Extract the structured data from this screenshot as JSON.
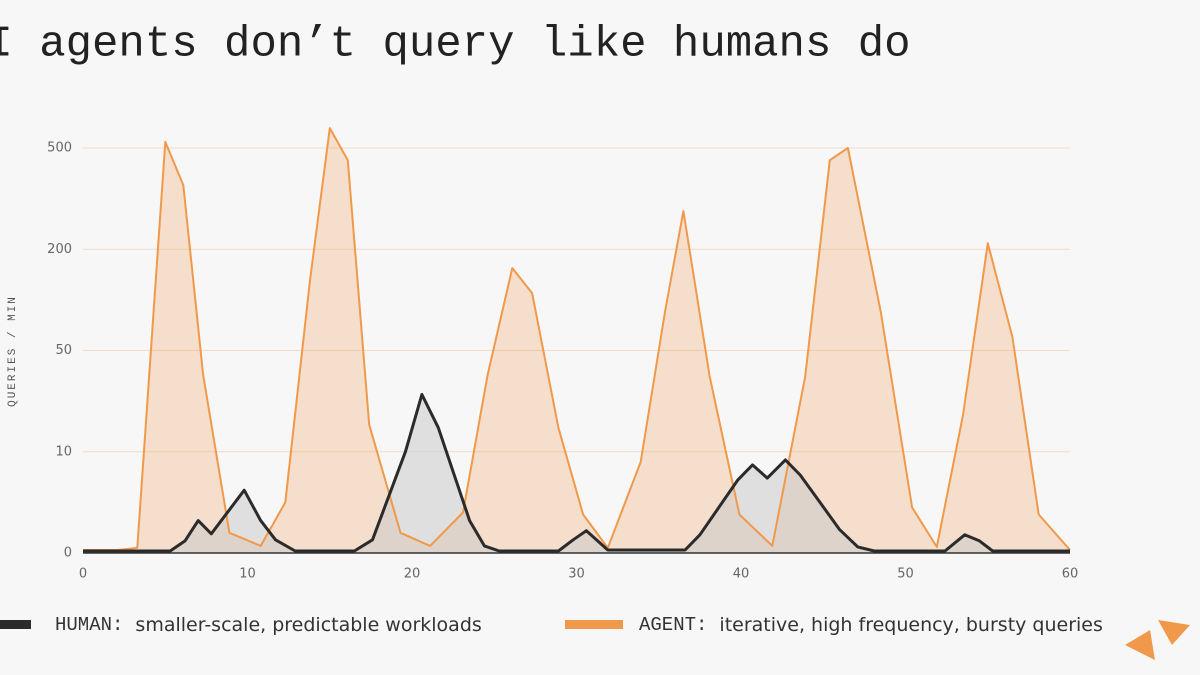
{
  "chart_data": {
    "type": "area",
    "title": "AI agents don’t query like humans do",
    "y_label": "QUERIES / MIN",
    "xlim": [
      0,
      60
    ],
    "xticks": [
      0,
      10,
      20,
      30,
      40,
      50,
      60
    ],
    "yticks": [
      0,
      10,
      50,
      200,
      500
    ],
    "grid": true,
    "series": [
      {
        "name": "HUMAN:",
        "description": "smaller-scale, predictable workloads",
        "color": "#2b2b2b",
        "x": [
          0,
          5.3,
          6.2,
          7,
          7.8,
          9.8,
          10.8,
          11.7,
          12.9,
          16.5,
          17.6,
          19.6,
          20.6,
          21.6,
          23.5,
          24.4,
          25.3,
          28.9,
          29.8,
          30.6,
          31.9,
          36.6,
          37.5,
          39.8,
          40.7,
          41.6,
          42.7,
          43.6,
          44.8,
          46,
          47.1,
          48.1,
          52.4,
          53.6,
          54.5,
          55.3,
          60
        ],
        "values": [
          0.2,
          0.2,
          1.2,
          3.2,
          1.9,
          6.2,
          3.2,
          1.3,
          0.2,
          0.2,
          1.3,
          10,
          32.6,
          19.5,
          3.2,
          0.7,
          0.2,
          0.2,
          1.3,
          2.2,
          0.3,
          0.3,
          1.8,
          7.2,
          8.7,
          7.4,
          9.2,
          7.7,
          5,
          2.3,
          0.6,
          0.2,
          0.2,
          1.8,
          1.2,
          0.2,
          0.2
        ]
      },
      {
        "name": "AGENT:",
        "description": "iterative, high frequency, bursty queries",
        "color": "#f0994a",
        "x": [
          0,
          2.1,
          3.3,
          5,
          6.1,
          7.3,
          8.9,
          10.8,
          12.3,
          13.8,
          15,
          16.1,
          17.4,
          19.3,
          21.1,
          23.1,
          24.6,
          26.1,
          27.3,
          28.9,
          30.4,
          31.9,
          33.9,
          35.4,
          36.5,
          38.1,
          39.9,
          41.9,
          43.9,
          45.4,
          46.5,
          48.5,
          50.4,
          51.9,
          53.5,
          55,
          56.5,
          58.1,
          60
        ],
        "values": [
          0.3,
          0.3,
          0.5,
          518,
          390,
          40.5,
          2,
          0.7,
          5,
          154,
          559,
          464,
          20.7,
          2,
          0.7,
          4,
          40.5,
          172,
          135,
          19.5,
          3.8,
          0.5,
          9,
          110,
          313,
          39.7,
          3.8,
          0.7,
          39.7,
          464,
          500,
          107,
          4.5,
          0.6,
          24.7,
          218,
          70,
          3.8,
          0.3
        ]
      }
    ]
  }
}
